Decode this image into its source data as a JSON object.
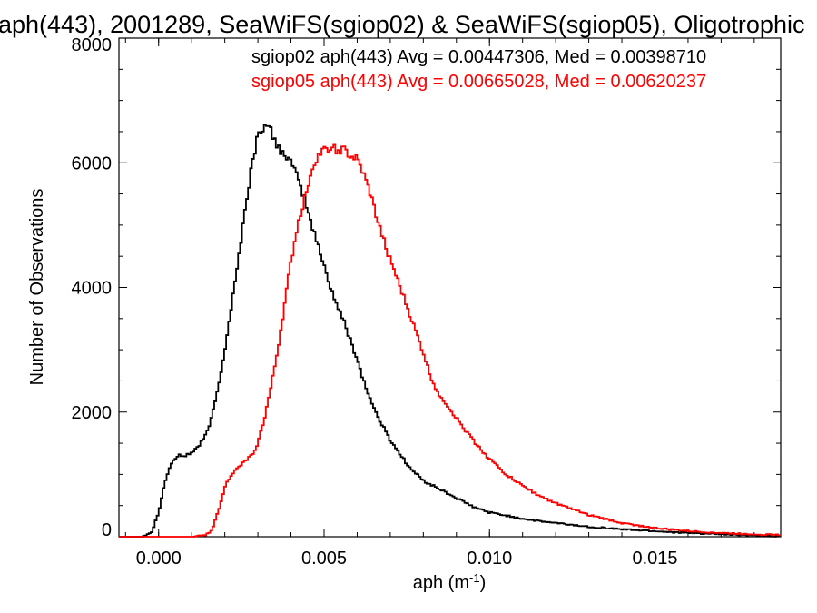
{
  "chart_data": {
    "type": "line",
    "title": "aph(443), 2001289, SeaWiFS(sgiop02) & SeaWiFS(sgiop05), Oligotrophic",
    "xlabel": {
      "base": "aph (m",
      "sup": "-1",
      "close": ")"
    },
    "ylabel": "Number of Observations",
    "xlim": [
      -0.0012,
      0.0188
    ],
    "ylim": [
      0,
      8000
    ],
    "x_ticks": [
      {
        "value": 0.0,
        "label": "0.000"
      },
      {
        "value": 0.005,
        "label": "0.005"
      },
      {
        "value": 0.01,
        "label": "0.010"
      },
      {
        "value": 0.015,
        "label": "0.015"
      }
    ],
    "y_ticks": [
      {
        "value": 0,
        "label": "0"
      },
      {
        "value": 2000,
        "label": "2000"
      },
      {
        "value": 4000,
        "label": "4000"
      },
      {
        "value": 6000,
        "label": "6000"
      },
      {
        "value": 8000,
        "label": "8000"
      }
    ],
    "annotations": [
      {
        "text": "sgiop02 aph(443) Avg = 0.00447306, Med = 0.00398710",
        "color": "#000000"
      },
      {
        "text": "sgiop05 aph(443) Avg = 0.00665028, Med = 0.00620237",
        "color": "#ff0000"
      }
    ],
    "series": [
      {
        "key": "sgiop02",
        "color": "#000000",
        "x": [
          -0.001,
          -0.0005,
          -0.0002,
          0.0,
          0.0002,
          0.0004,
          0.0006,
          0.0008,
          0.001,
          0.0012,
          0.0014,
          0.0016,
          0.0018,
          0.002,
          0.0022,
          0.0024,
          0.0026,
          0.0028,
          0.003,
          0.0032,
          0.0034,
          0.0036,
          0.0038,
          0.004,
          0.0042,
          0.0044,
          0.0046,
          0.0048,
          0.005,
          0.0052,
          0.0054,
          0.0056,
          0.0058,
          0.006,
          0.0062,
          0.0064,
          0.0066,
          0.0068,
          0.007,
          0.0072,
          0.0074,
          0.0076,
          0.0078,
          0.008,
          0.0085,
          0.009,
          0.0095,
          0.01,
          0.0105,
          0.011,
          0.0115,
          0.012,
          0.0125,
          0.013,
          0.014,
          0.015,
          0.016,
          0.017,
          0.018,
          0.0187
        ],
        "y": [
          0,
          0,
          80,
          400,
          900,
          1200,
          1300,
          1300,
          1350,
          1450,
          1600,
          1900,
          2400,
          3000,
          3700,
          4400,
          5200,
          5900,
          6450,
          6600,
          6500,
          6250,
          6150,
          6000,
          5750,
          5450,
          5050,
          4700,
          4350,
          4000,
          3700,
          3450,
          3150,
          2850,
          2500,
          2200,
          1950,
          1750,
          1550,
          1400,
          1250,
          1100,
          1000,
          900,
          760,
          620,
          480,
          390,
          340,
          290,
          250,
          220,
          190,
          160,
          120,
          90,
          60,
          40,
          20,
          10
        ]
      },
      {
        "key": "sgiop05",
        "color": "#ff0000",
        "x": [
          -0.001,
          0.001,
          0.0014,
          0.0016,
          0.0018,
          0.002,
          0.0022,
          0.0024,
          0.0026,
          0.0028,
          0.003,
          0.0032,
          0.0034,
          0.0036,
          0.0038,
          0.004,
          0.0042,
          0.0044,
          0.0046,
          0.0048,
          0.005,
          0.0052,
          0.0054,
          0.0056,
          0.0058,
          0.006,
          0.0062,
          0.0064,
          0.0066,
          0.0068,
          0.007,
          0.0072,
          0.0074,
          0.0076,
          0.0078,
          0.008,
          0.0082,
          0.0084,
          0.0086,
          0.0088,
          0.009,
          0.0095,
          0.01,
          0.0105,
          0.011,
          0.0115,
          0.012,
          0.0125,
          0.013,
          0.014,
          0.015,
          0.016,
          0.017,
          0.018,
          0.0187
        ],
        "y": [
          0,
          0,
          20,
          100,
          400,
          800,
          1000,
          1100,
          1200,
          1300,
          1500,
          1900,
          2400,
          3000,
          3700,
          4400,
          5000,
          5400,
          5850,
          6100,
          6200,
          6250,
          6200,
          6200,
          6100,
          6050,
          5800,
          5500,
          5100,
          4750,
          4450,
          4150,
          3850,
          3550,
          3250,
          2950,
          2600,
          2350,
          2200,
          2050,
          1900,
          1550,
          1250,
          1000,
          820,
          660,
          540,
          440,
          350,
          220,
          140,
          90,
          60,
          40,
          30
        ]
      }
    ]
  }
}
